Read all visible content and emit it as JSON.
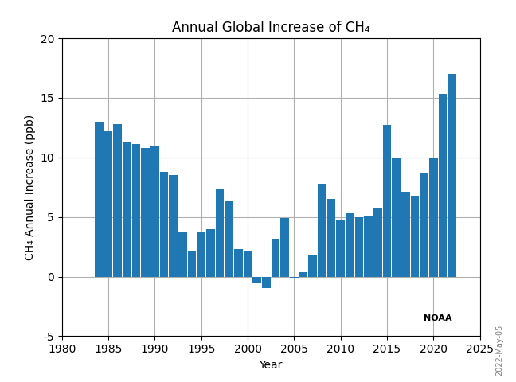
{
  "chart_data": {
    "type": "bar",
    "title": "Annual Global Increase of CH₄",
    "x_label": "Year",
    "y_label": "CH₄ Annual Increase (ppb)",
    "x": [
      1984,
      1985,
      1986,
      1987,
      1988,
      1989,
      1990,
      1991,
      1992,
      1993,
      1994,
      1995,
      1996,
      1997,
      1998,
      1999,
      2000,
      2001,
      2002,
      2003,
      2004,
      2005,
      2006,
      2007,
      2008,
      2009,
      2010,
      2011,
      2012,
      2013,
      2014,
      2015,
      2016,
      2017,
      2018,
      2019,
      2020,
      2021,
      2022
    ],
    "values": [
      13.0,
      12.2,
      12.8,
      11.3,
      11.1,
      10.8,
      11.0,
      8.8,
      8.5,
      3.8,
      2.2,
      3.8,
      4.0,
      7.3,
      6.3,
      2.3,
      2.1,
      -0.5,
      -1.0,
      3.2,
      4.9,
      -0.1,
      0.4,
      1.8,
      7.8,
      6.5,
      4.8,
      5.3,
      5.0,
      5.1,
      5.8,
      12.7,
      10.0,
      7.1,
      6.8,
      8.7,
      10.0,
      15.3,
      17.0
    ],
    "xlim": [
      1980,
      2025
    ],
    "xticks": [
      1980,
      1985,
      1990,
      1995,
      2000,
      2005,
      2010,
      2015,
      2020,
      2025
    ],
    "ylim": [
      -5,
      20
    ],
    "yticks": [
      -5,
      0,
      5,
      10,
      15,
      20
    ],
    "grid": true,
    "annotations": [
      "2022-May-05",
      "NOAA"
    ]
  }
}
